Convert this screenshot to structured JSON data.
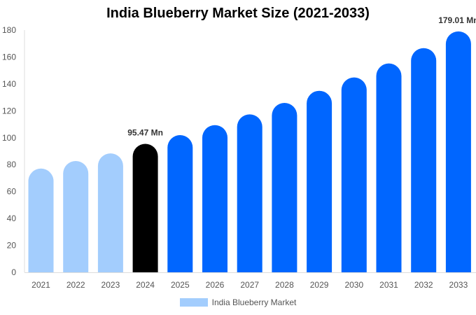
{
  "chart_data": {
    "type": "bar",
    "title": "India Blueberry Market Size (2021-2033)",
    "categories": [
      "2021",
      "2022",
      "2023",
      "2024",
      "2025",
      "2026",
      "2027",
      "2028",
      "2029",
      "2030",
      "2031",
      "2032",
      "2033"
    ],
    "series": [
      {
        "name": "India Blueberry Market",
        "values": [
          77.1,
          82.7,
          88.4,
          95.47,
          102.0,
          109.4,
          117.4,
          125.9,
          134.9,
          144.8,
          155.2,
          166.6,
          179.01
        ]
      }
    ],
    "data_labels": [
      {
        "category": "2024",
        "text": "95.47 Mn"
      },
      {
        "category": "2033",
        "text": "179.01 Mn"
      }
    ],
    "ylim": [
      0,
      180
    ],
    "yticks": [
      0,
      20,
      40,
      60,
      80,
      100,
      120,
      140,
      160,
      180
    ],
    "grid": false,
    "legend_position": "bottom",
    "colors": {
      "historical": "#a3cdfd",
      "base_year": "#000000",
      "forecast": "#0066ff"
    },
    "color_by_category": [
      "historical",
      "historical",
      "historical",
      "base_year",
      "forecast",
      "forecast",
      "forecast",
      "forecast",
      "forecast",
      "forecast",
      "forecast",
      "forecast",
      "forecast"
    ]
  }
}
